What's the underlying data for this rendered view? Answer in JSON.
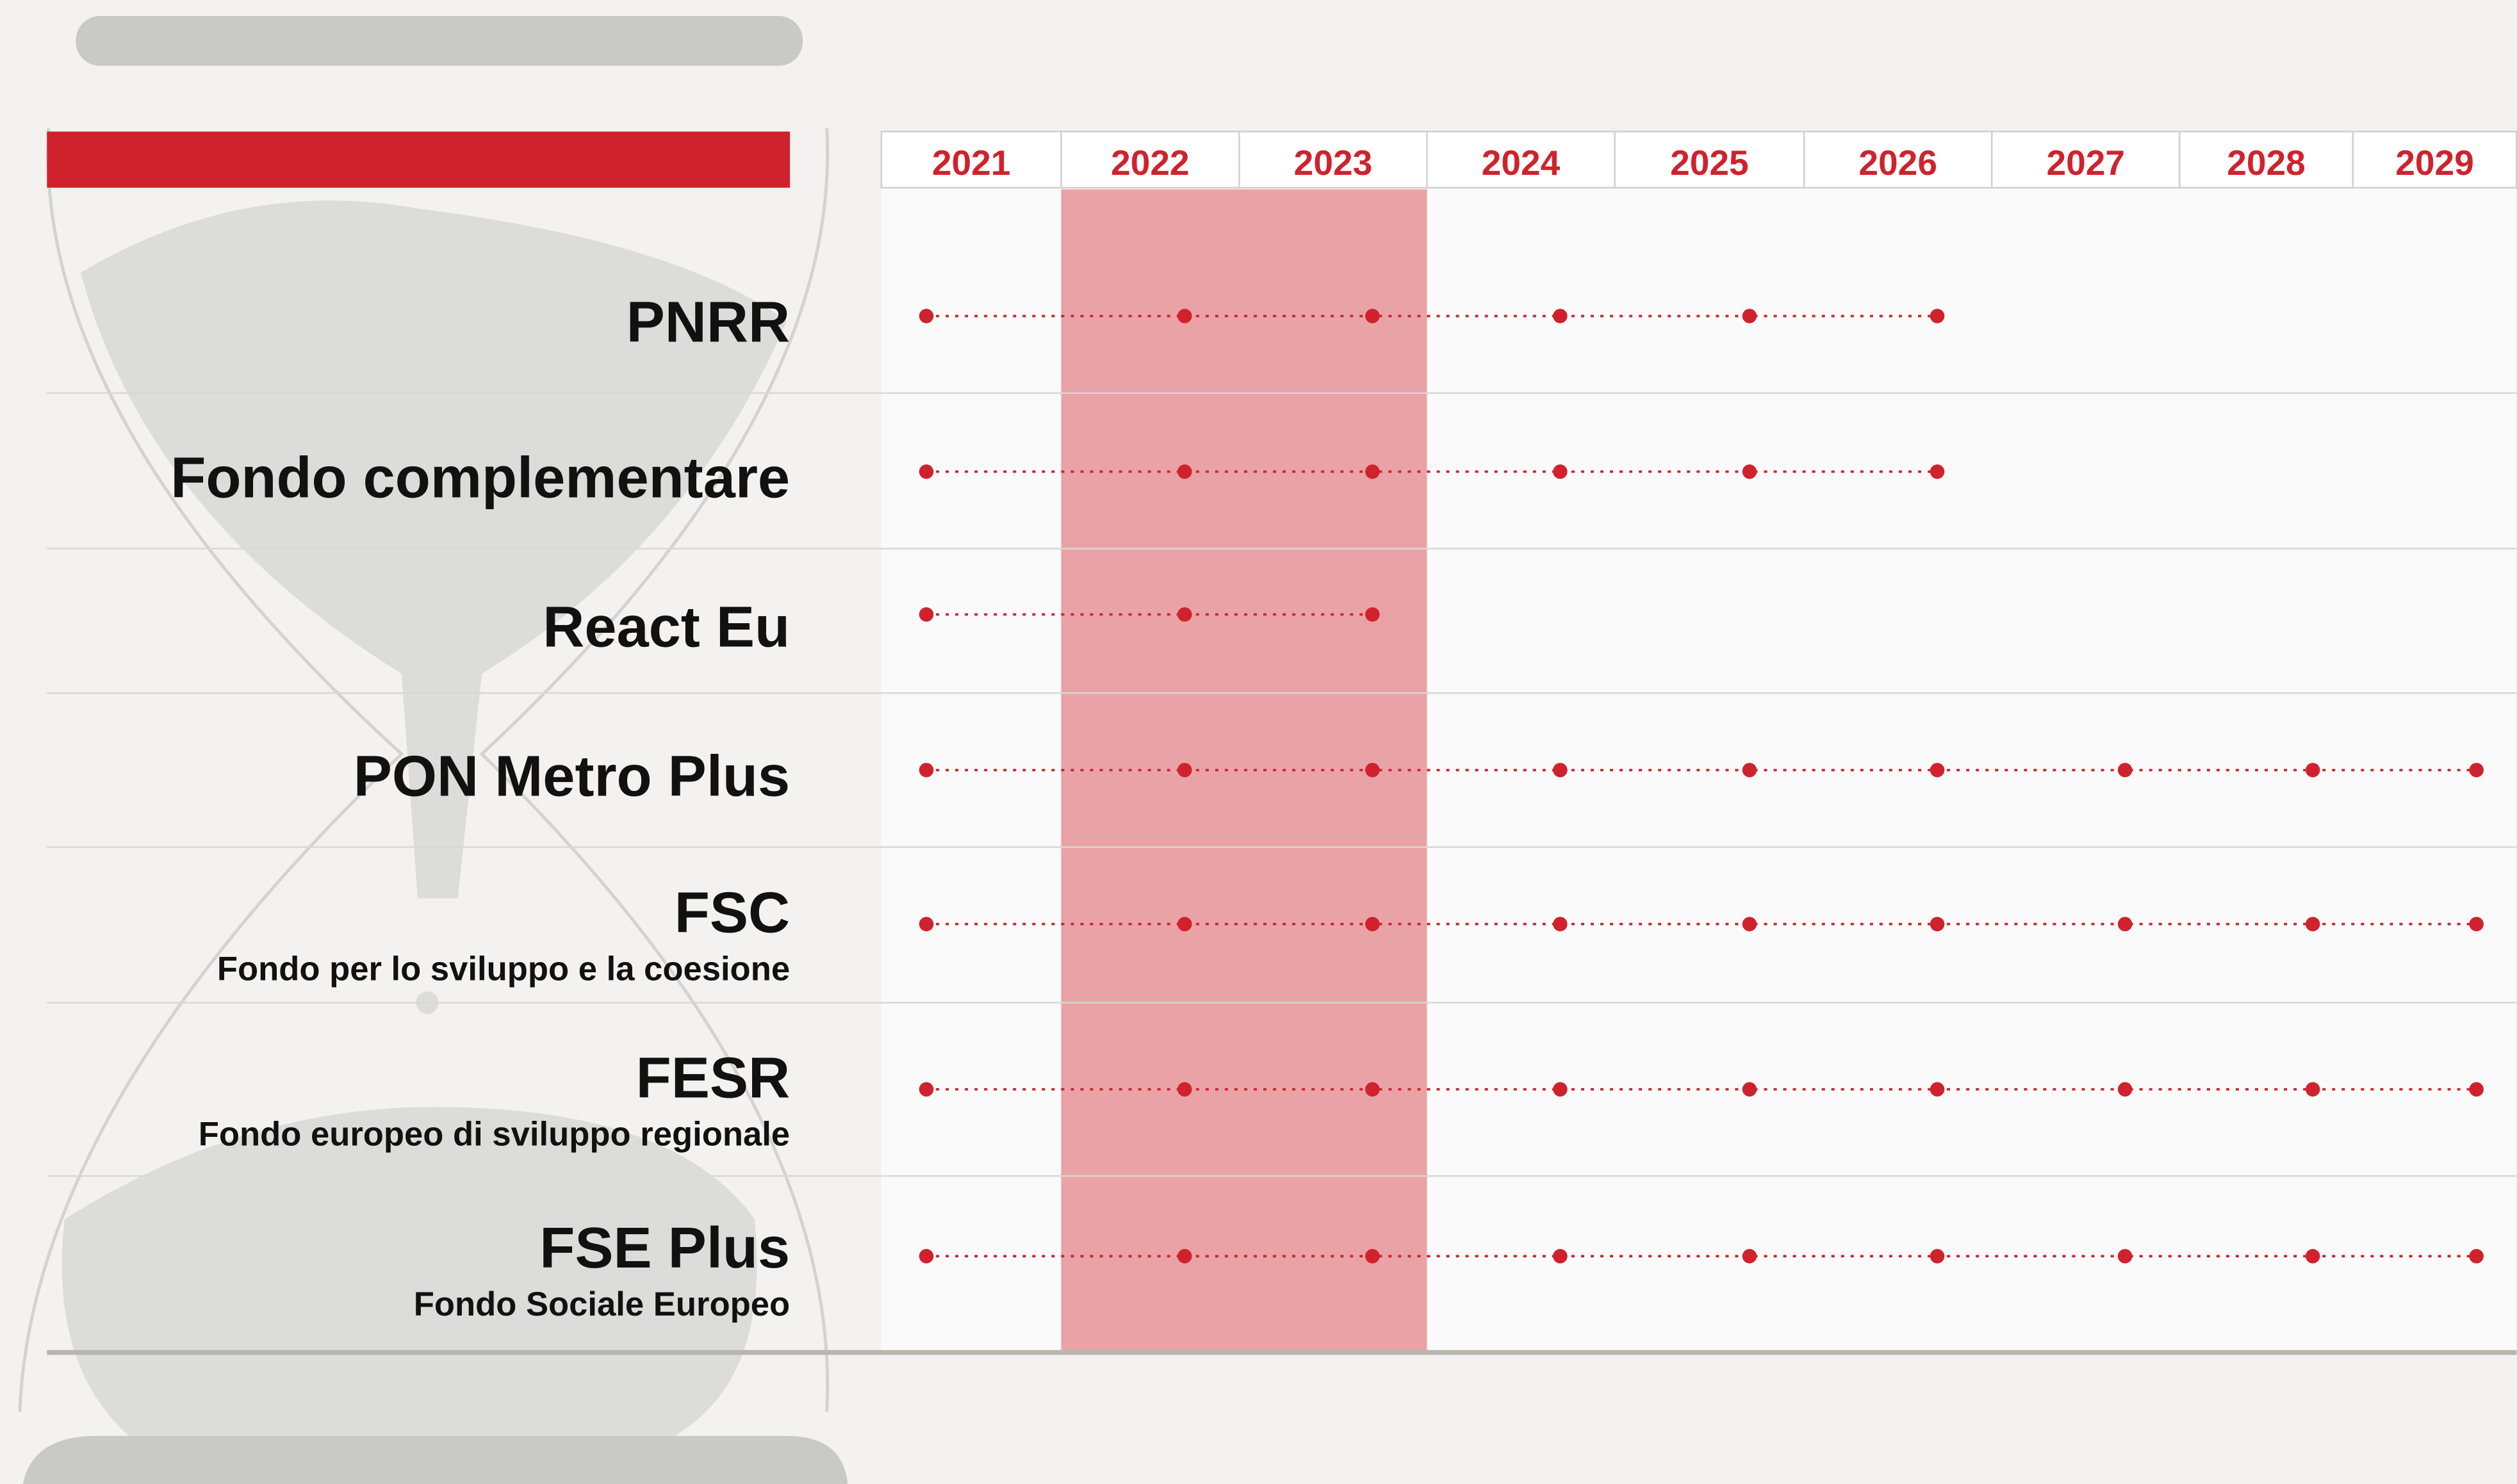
{
  "years": [
    2021,
    2022,
    2023,
    2024,
    2025,
    2026,
    2027,
    2028,
    2029
  ],
  "programs": [
    {
      "name": "PNRR",
      "years": [
        2021,
        2022,
        2023,
        2024,
        2025,
        2026
      ]
    },
    {
      "name": "Fondo complementare",
      "years": [
        2021,
        2022,
        2023,
        2024,
        2025,
        2026
      ]
    },
    {
      "name": "React Eu",
      "years": [
        2021,
        2022,
        2023
      ]
    },
    {
      "name": "PON Metro Plus",
      "years": [
        2021,
        2022,
        2023,
        2024,
        2025,
        2026,
        2027,
        2028,
        2029
      ]
    },
    {
      "name": "FSC",
      "subtitle": "Fondo per lo sviluppo e la coesione",
      "years": [
        2021,
        2022,
        2023,
        2024,
        2025,
        2026,
        2027,
        2028,
        2029
      ]
    },
    {
      "name": "FESR",
      "subtitle": "Fondo europeo di sviluppo regionale",
      "years": [
        2021,
        2022,
        2023,
        2024,
        2025,
        2026,
        2027,
        2028,
        2029
      ]
    },
    {
      "name": "FSE Plus",
      "subtitle": "Fondo Sociale Europeo",
      "years": [
        2021,
        2022,
        2023,
        2024,
        2025,
        2026,
        2027,
        2028,
        2029
      ]
    }
  ]
}
